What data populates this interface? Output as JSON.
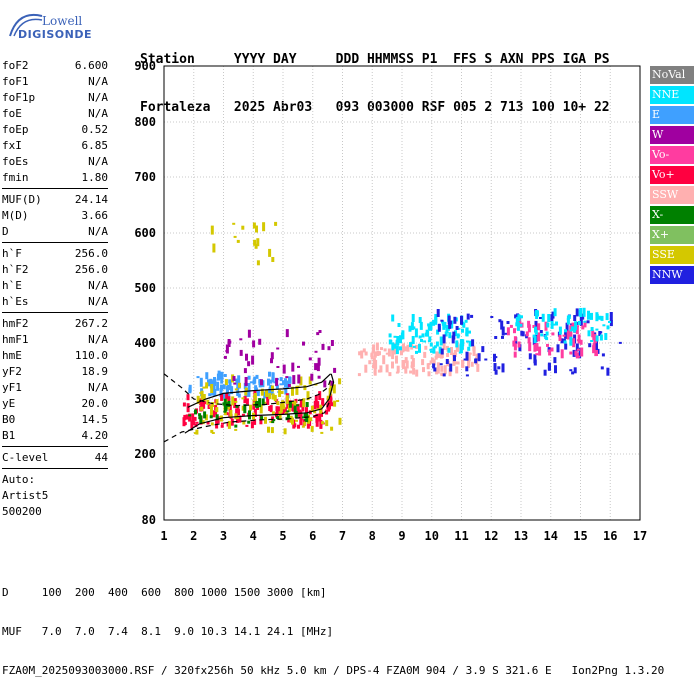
{
  "logo": {
    "line1": "Lowell",
    "line2": "DIGISONDE"
  },
  "header": {
    "labels": [
      "Station",
      "YYYY",
      "DAY",
      "DDD",
      "HHMMSS",
      "P1",
      "FFS",
      "S",
      "AXN",
      "PPS",
      "IGA",
      "PS"
    ],
    "values": [
      "Fortaleza",
      "2025",
      "Abr03",
      "093",
      "003000",
      "RSF",
      "005",
      "2",
      "713",
      "100",
      "10+",
      "22"
    ]
  },
  "params": {
    "group1": [
      {
        "label": "foF2",
        "value": "6.600"
      },
      {
        "label": "foF1",
        "value": "N/A"
      },
      {
        "label": "foF1p",
        "value": "N/A"
      },
      {
        "label": "foE",
        "value": "N/A"
      },
      {
        "label": "foEp",
        "value": "0.52"
      },
      {
        "label": "fxI",
        "value": "6.85"
      },
      {
        "label": "foEs",
        "value": "N/A"
      },
      {
        "label": "fmin",
        "value": "1.80"
      }
    ],
    "group2": [
      {
        "label": "MUF(D)",
        "value": "24.14"
      },
      {
        "label": "M(D)",
        "value": "3.66"
      },
      {
        "label": "D",
        "value": "N/A"
      }
    ],
    "group3": [
      {
        "label": "h`F",
        "value": "256.0"
      },
      {
        "label": "h`F2",
        "value": "256.0"
      },
      {
        "label": "h`E",
        "value": "N/A"
      },
      {
        "label": "h`Es",
        "value": "N/A"
      }
    ],
    "group4": [
      {
        "label": "hmF2",
        "value": "267.2"
      },
      {
        "label": "hmF1",
        "value": "N/A"
      },
      {
        "label": "hmE",
        "value": "110.0"
      },
      {
        "label": "yF2",
        "value": "18.9"
      },
      {
        "label": "yF1",
        "value": "N/A"
      },
      {
        "label": "yE",
        "value": "20.0"
      },
      {
        "label": "B0",
        "value": "14.5"
      },
      {
        "label": "B1",
        "value": "4.20"
      }
    ],
    "group5": [
      {
        "label": "C-level",
        "value": "44"
      }
    ],
    "auto": [
      "Auto:",
      "Artist5",
      "500200"
    ]
  },
  "legend": [
    {
      "label": "NoVal",
      "color": "#808080"
    },
    {
      "label": "NNE",
      "color": "#00e5ff"
    },
    {
      "label": "E",
      "color": "#3fa0ff"
    },
    {
      "label": "W",
      "color": "#a000a0"
    },
    {
      "label": "Vo-",
      "color": "#ff3ca0"
    },
    {
      "label": "Vo+",
      "color": "#ff0040"
    },
    {
      "label": "SSW",
      "color": "#ffb0b0"
    },
    {
      "label": "X-",
      "color": "#008000"
    },
    {
      "label": "X+",
      "color": "#80c060"
    },
    {
      "label": "SSE",
      "color": "#d4c800"
    },
    {
      "label": "NNW",
      "color": "#2020e0"
    }
  ],
  "chart_data": {
    "type": "scatter",
    "title": "",
    "xlabel": "",
    "ylabel": "",
    "xlim": [
      1,
      17
    ],
    "ylim": [
      80,
      900
    ],
    "x_ticks": [
      "1",
      "2",
      "3",
      "4",
      "5",
      "6",
      "7",
      "8",
      "9",
      "10",
      "11",
      "12",
      "13",
      "14",
      "15",
      "16",
      "17"
    ],
    "y_ticks": [
      "80",
      "200",
      "300",
      "400",
      "500",
      "600",
      "700",
      "800",
      "900"
    ],
    "grid": true,
    "clusters": [
      {
        "name": "E",
        "color": "#3fa0ff",
        "freq_range": [
          1.8,
          5.2
        ],
        "height_range": [
          300,
          340
        ],
        "count": 90
      },
      {
        "name": "Vo+",
        "color": "#ff0040",
        "freq_range": [
          1.6,
          6.6
        ],
        "height_range": [
          245,
          300
        ],
        "count": 140
      },
      {
        "name": "SSE",
        "color": "#d4c800",
        "freq_range": [
          2.0,
          7.0
        ],
        "height_range": [
          235,
          330
        ],
        "count": 110
      },
      {
        "name": "X-",
        "color": "#008000",
        "freq_range": [
          1.8,
          6.0
        ],
        "height_range": [
          245,
          290
        ],
        "count": 40
      },
      {
        "name": "W",
        "color": "#a000a0",
        "freq_range": [
          3.0,
          6.8
        ],
        "height_range": [
          320,
          420
        ],
        "count": 50
      },
      {
        "name": "SSW",
        "color": "#ffb0b0",
        "freq_range": [
          7.5,
          11.5
        ],
        "height_range": [
          340,
          390
        ],
        "count": 120
      },
      {
        "name": "NNE",
        "color": "#00e5ff",
        "freq_range": [
          8.5,
          11.3
        ],
        "height_range": [
          380,
          440
        ],
        "count": 90
      },
      {
        "name": "NNW",
        "color": "#2020e0",
        "freq_range": [
          10.0,
          16.3
        ],
        "height_range": [
          340,
          450
        ],
        "count": 110
      },
      {
        "name": "Vo-",
        "color": "#ff3ca0",
        "freq_range": [
          12.5,
          15.5
        ],
        "height_range": [
          370,
          430
        ],
        "count": 60
      },
      {
        "name": "NNE-high",
        "color": "#00e5ff",
        "freq_range": [
          12.5,
          16.0
        ],
        "height_range": [
          395,
          450
        ],
        "count": 60
      },
      {
        "name": "SSE-sparse",
        "color": "#d4c800",
        "freq_range": [
          2.5,
          4.8
        ],
        "height_range": [
          540,
          620
        ],
        "count": 16
      }
    ]
  },
  "bottom": {
    "d_label": "D",
    "d_values": [
      "100",
      "200",
      "400",
      "600",
      "800",
      "1000",
      "1500",
      "3000"
    ],
    "d_unit": "[km]",
    "muf_label": "MUF",
    "muf_values": [
      "7.0",
      "7.0",
      "7.4",
      "8.1",
      "9.0",
      "10.3",
      "14.1",
      "24.1"
    ],
    "muf_unit": "[MHz]",
    "footer": "FZA0M_2025093003000.RSF / 320fx256h 50 kHz 5.0 km / DPS-4 FZA0M 904 / 3.9 S 321.6 E   Ion2Png 1.3.20"
  }
}
